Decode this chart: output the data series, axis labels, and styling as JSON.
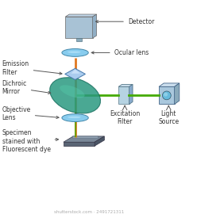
{
  "bg_color": "#ffffff",
  "label_color": "#333333",
  "arrow_color": "#555555",
  "beam_orange_color": "#e07820",
  "beam_green_color": "#44aa00",
  "labels": {
    "detector": "Detector",
    "ocular": "Ocular lens",
    "emission": "Emission\nFilter",
    "dichroic": "Dichroic\nMirror",
    "objective": "Objective\nLens",
    "specimen": "Specimen\nstained with\nFluorescent dye",
    "excitation": "Excitation\nFilter",
    "light_source": "Light\nSource"
  },
  "watermark": "shutterstock.com · 2491721311"
}
